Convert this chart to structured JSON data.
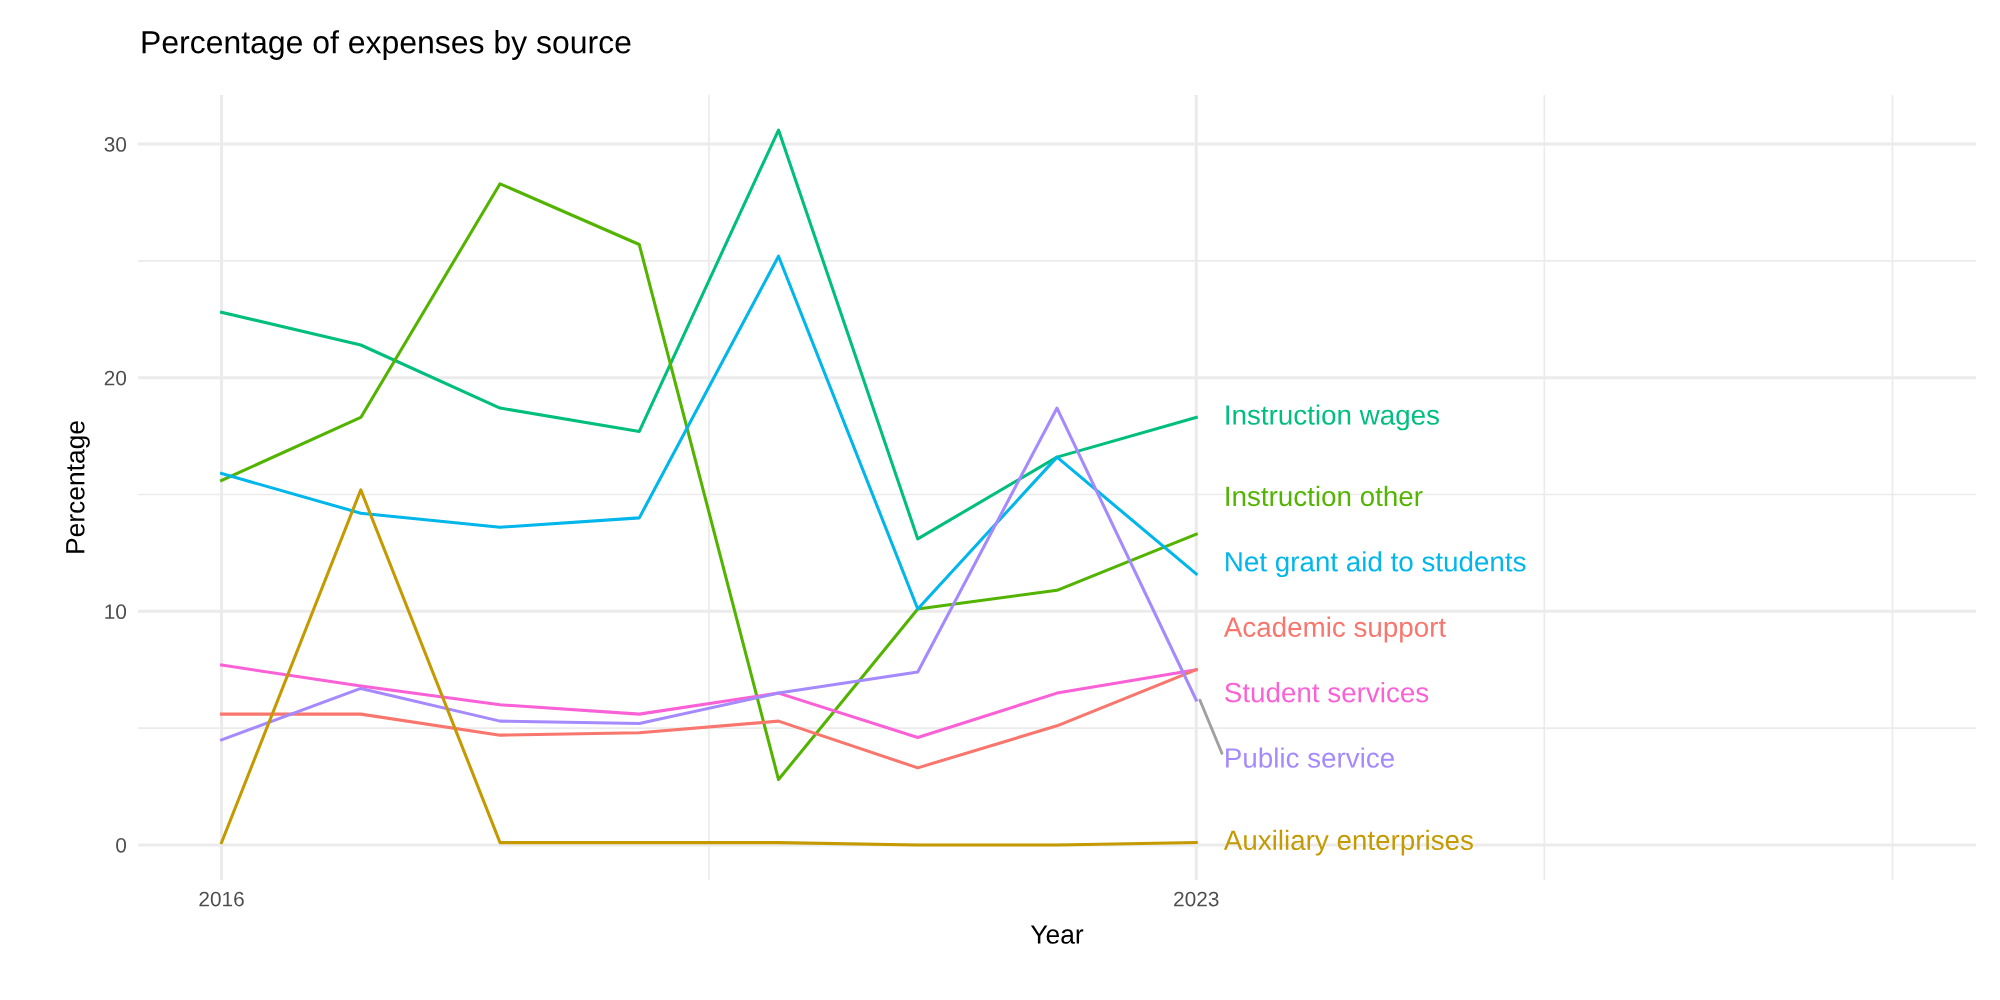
{
  "chart_data": {
    "type": "line",
    "title": "Percentage of expenses by source",
    "xlabel": "Year",
    "ylabel": "Percentage",
    "x": [
      2016,
      2017,
      2018,
      2019,
      2020,
      2021,
      2022,
      2023
    ],
    "xlim": [
      2015.4,
      2028.6
    ],
    "xticks": [
      2016,
      {
        "value": 2019.5,
        "label": null
      },
      2023,
      {
        "value": 2025.5,
        "label": null
      },
      {
        "value": 2028,
        "label": null
      }
    ],
    "ylim": [
      -1.5,
      32.1
    ],
    "yticks": [
      0,
      {
        "value": 5,
        "label": null
      },
      10,
      {
        "value": 15,
        "label": null
      },
      20,
      {
        "value": 25,
        "label": null
      },
      30
    ],
    "grid": true,
    "legend": false,
    "line_style": "solid",
    "marker": "none",
    "series": [
      {
        "name": "Instruction wages",
        "color": "#00bf7d",
        "values": [
          22.8,
          21.4,
          18.7,
          17.7,
          30.6,
          13.1,
          16.6,
          18.3
        ]
      },
      {
        "name": "Instruction other",
        "color": "#53b400",
        "values": [
          15.6,
          18.3,
          28.3,
          25.7,
          2.8,
          10.1,
          10.9,
          13.3
        ]
      },
      {
        "name": "Net grant aid to students",
        "color": "#00b6eb",
        "values": [
          15.9,
          14.2,
          13.6,
          14.0,
          25.2,
          10.1,
          16.6,
          11.6
        ]
      },
      {
        "name": "Student services",
        "color": "#fb61d7",
        "values": [
          7.7,
          6.8,
          6.0,
          5.6,
          6.5,
          4.6,
          6.5,
          7.5
        ]
      },
      {
        "name": "Academic support",
        "color": "#f8766d",
        "values": [
          5.6,
          5.6,
          4.7,
          4.8,
          5.3,
          3.3,
          5.1,
          7.5
        ]
      },
      {
        "name": "Public service",
        "color": "#a58aff",
        "values": [
          4.5,
          6.7,
          5.3,
          5.2,
          6.5,
          7.4,
          18.7,
          6.2
        ]
      },
      {
        "name": "Auxiliary enterprises",
        "color": "#c49a00",
        "values": [
          0.1,
          15.2,
          0.1,
          0.1,
          0.1,
          0.0,
          0.0,
          0.1
        ]
      }
    ]
  }
}
